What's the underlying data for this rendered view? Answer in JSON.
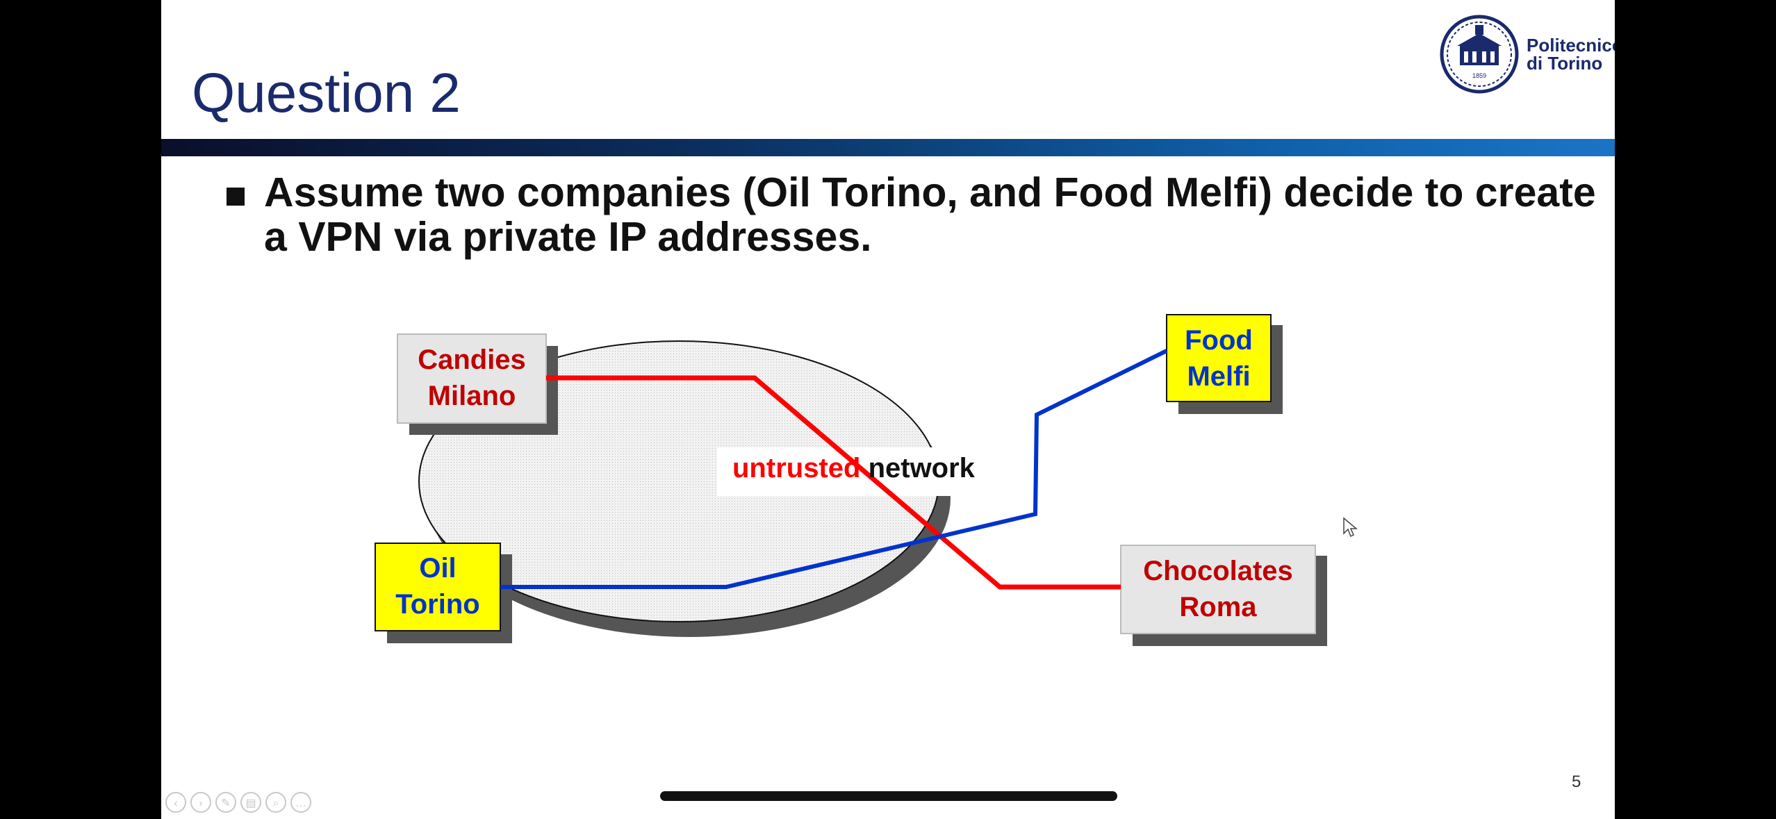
{
  "slide": {
    "title": "Question 2",
    "logo": {
      "name": "Politecnico di Torino",
      "line1": "Politecnico",
      "line2": "di Torino",
      "year": "1859"
    },
    "bullet_text": "Assume two companies (Oil Torino, and Food Melfi) decide to create a VPN via private IP addresses.",
    "page_number": "5"
  },
  "diagram": {
    "network_label_colored": "untrusted",
    "network_label_rest": "network",
    "nodes": {
      "candies": {
        "line1": "Candies",
        "line2": "Milano"
      },
      "food": {
        "line1": "Food",
        "line2": "Melfi"
      },
      "oil": {
        "line1": "Oil",
        "line2": "Torino"
      },
      "chocolates": {
        "line1": "Chocolates",
        "line2": "Roma"
      }
    }
  },
  "colors": {
    "slide_title": "#1a2a6c",
    "red_company": "#c00000",
    "blue_company": "#0033cc",
    "red_line": "#ff0000",
    "blue_line": "#0033cc",
    "yellow_box": "#ffff00",
    "grey_box": "#e6e6e6"
  },
  "icons": {
    "nav": [
      "previous-icon",
      "next-icon",
      "pen-icon",
      "slides-icon",
      "zoom-icon",
      "more-icon"
    ]
  }
}
